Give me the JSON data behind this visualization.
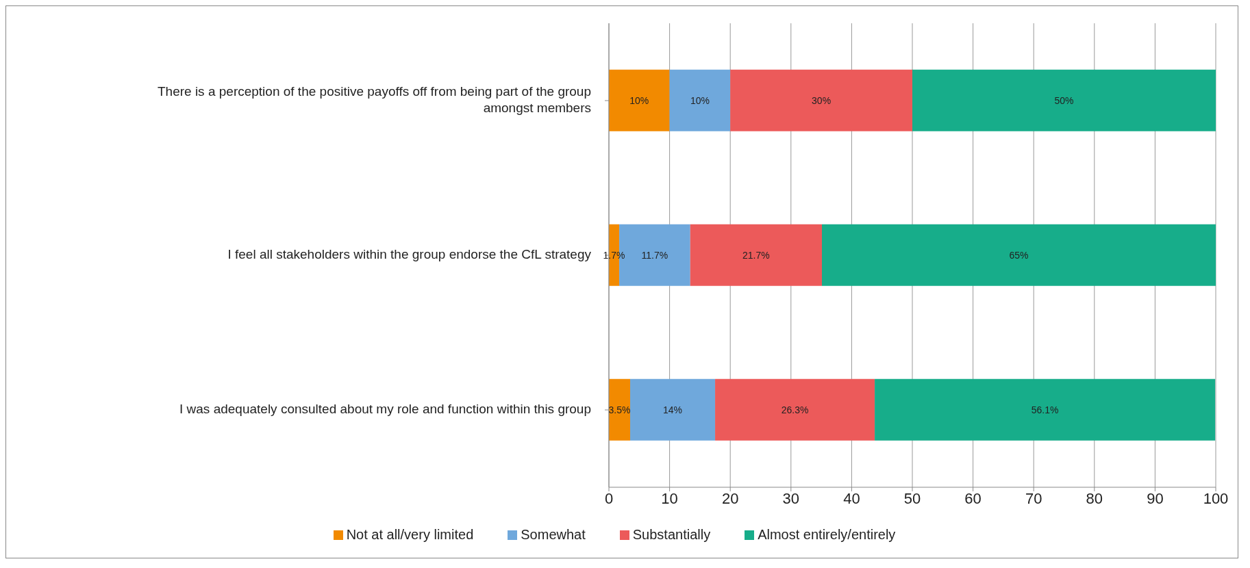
{
  "chart_data": {
    "type": "bar",
    "orientation": "horizontal",
    "stacked": true,
    "categories": [
      "There is a perception of the positive payoffs off from being part of the group amongst members",
      "I feel all stakeholders within the group endorse the CfL strategy",
      "I was adequately consulted about my role and function within this group"
    ],
    "series": [
      {
        "name": "Not at all/very limited",
        "color": "#f28a00",
        "values": [
          10,
          1.7,
          3.5
        ],
        "value_labels": [
          "10%",
          "1.7%",
          "3.5%"
        ]
      },
      {
        "name": "Somewhat",
        "color": "#6fa8dc",
        "values": [
          10,
          11.7,
          14
        ],
        "value_labels": [
          "10%",
          "11.7%",
          "14%"
        ]
      },
      {
        "name": "Substantially",
        "color": "#ec5a5a",
        "values": [
          30,
          21.7,
          26.3
        ],
        "value_labels": [
          "30%",
          "21.7%",
          "26.3%"
        ]
      },
      {
        "name": "Almost entirely/entirely",
        "color": "#17ad8a",
        "values": [
          50,
          65,
          56.1
        ],
        "value_labels": [
          "50%",
          "65%",
          "56.1%"
        ]
      }
    ],
    "xlim": [
      0,
      100
    ],
    "xticks": [
      0,
      10,
      20,
      30,
      40,
      50,
      60,
      70,
      80,
      90,
      100
    ],
    "grid": "x",
    "legend": "bottom"
  }
}
